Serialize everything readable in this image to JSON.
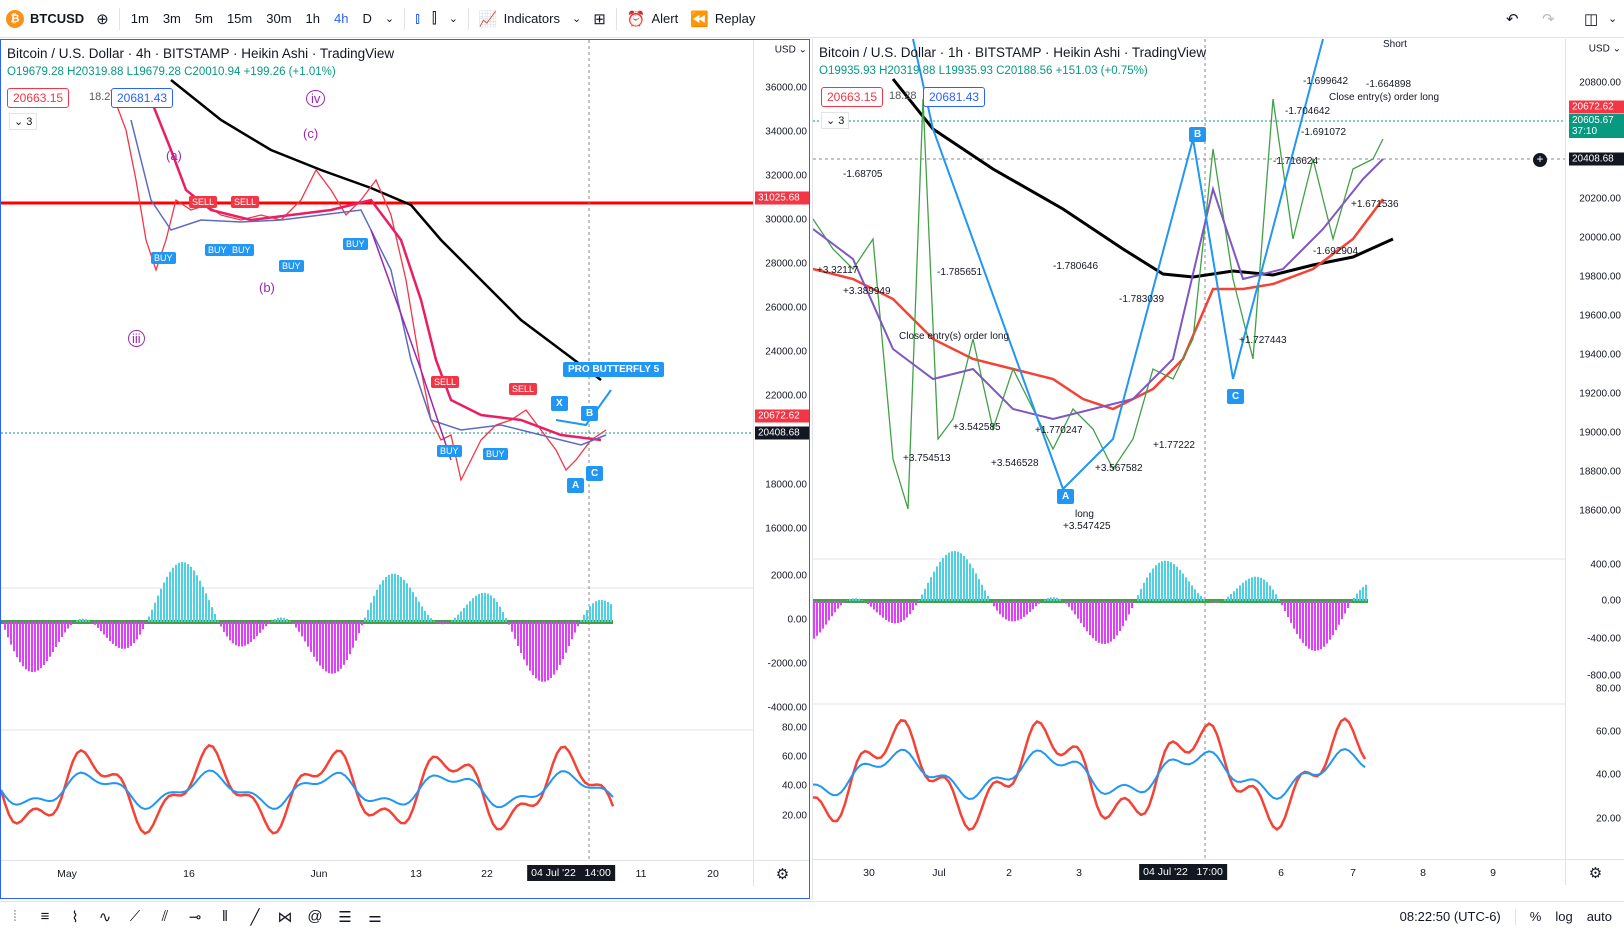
{
  "topbar": {
    "symbol": "BTCUSD",
    "symbol_icon": "bitcoin-icon",
    "timeframes": [
      "1m",
      "3m",
      "5m",
      "15m",
      "30m",
      "1h",
      "4h",
      "D"
    ],
    "active_timeframe": "4h",
    "indicators_label": "Indicators",
    "alert_label": "Alert",
    "replay_label": "Replay"
  },
  "left_chart": {
    "title": "Bitcoin / U.S. Dollar · 4h · BITSTAMP · Heikin Ashi · TradingView",
    "ohlc": "O19679.28 H20319.88 L19679.28 C20010.94 +199.26 (+1.01%)",
    "bid": "20663.15",
    "spread": "18.28",
    "ask": "20681.43",
    "indicator_count": "3",
    "currency": "USD",
    "price_ticks": [
      "36000.00",
      "34000.00",
      "32000.00",
      "30000.00",
      "28000.00",
      "26000.00",
      "24000.00",
      "22000.00",
      "18000.00",
      "16000.00"
    ],
    "osc_ticks": [
      "2000.00",
      "0.00",
      "-2000.00",
      "-4000.00"
    ],
    "rsi_ticks": [
      "80.00",
      "60.00",
      "40.00",
      "20.00"
    ],
    "tag_resistance": "31025.68",
    "tag_last": "20672.62",
    "tag_cross": "20408.68",
    "time_labels": [
      "May",
      "16",
      "Jun",
      "13",
      "22",
      "11",
      "20"
    ],
    "time_current": "04 Jul '22",
    "time_current_hour": "14:00",
    "pattern_label": "PRO BUTTERFLY 5",
    "waves": [
      "iv",
      "(c)",
      "(a)",
      "(b)",
      "iii"
    ],
    "points": [
      "X",
      "B",
      "A",
      "C"
    ],
    "signals_buy": [
      "BUY",
      "BUY",
      "BUY",
      "BUY",
      "BUY",
      "BUY",
      "BUY"
    ],
    "signals_sell": [
      "SELL",
      "SELL",
      "SELL",
      "SELL"
    ]
  },
  "right_chart": {
    "title": "Bitcoin / U.S. Dollar · 1h · BITSTAMP · Heikin Ashi · TradingView",
    "ohlc": "O19935.93 H20319.88 L19935.93 C20188.56 +151.03 (+0.75%)",
    "bid": "20663.15",
    "spread": "18.28",
    "ask": "20681.43",
    "indicator_count": "3",
    "currency": "USD",
    "price_ticks": [
      "20800.00",
      "20200.00",
      "20000.00",
      "19800.00",
      "19600.00",
      "19400.00",
      "19200.00",
      "19000.00",
      "18800.00",
      "18600.00"
    ],
    "osc_ticks": [
      "400.00",
      "0.00",
      "-400.00",
      "-800.00"
    ],
    "rsi_ticks": [
      "80.00",
      "60.00",
      "40.00",
      "20.00"
    ],
    "tag_last": "20672.62",
    "tag_last2": "20605.67",
    "tag_timer": "37:10",
    "tag_cross": "20408.68",
    "time_labels": [
      "30",
      "Jul",
      "2",
      "3",
      "4",
      "6",
      "7",
      "8",
      "9"
    ],
    "time_current": "04 Jul '22",
    "time_current_hour": "17:00",
    "points": [
      "B",
      "A",
      "C"
    ],
    "annotations": [
      {
        "text": "Short",
        "k": "a1"
      },
      {
        "text": "-1.664898",
        "k": "a2"
      },
      {
        "text": "Close entry(s) order long",
        "k": "a3"
      },
      {
        "text": "-1.699642",
        "k": "a4"
      },
      {
        "text": "-1.704642",
        "k": "a5"
      },
      {
        "text": "-1.691072",
        "k": "a6"
      },
      {
        "text": "-1.716624",
        "k": "a7"
      },
      {
        "text": "+1.671536",
        "k": "a8"
      },
      {
        "text": "-1.692904",
        "k": "a9"
      },
      {
        "text": "long",
        "k": "a10"
      },
      {
        "text": "+3.547425",
        "k": "a11"
      },
      {
        "text": "+1.77222",
        "k": "a12"
      },
      {
        "text": "+3.567582",
        "k": "a13"
      },
      {
        "text": "-1.780646",
        "k": "a14"
      },
      {
        "text": "-1.783039",
        "k": "a15"
      },
      {
        "text": "+3.389949",
        "k": "a16"
      },
      {
        "text": "+3.32117",
        "k": "a17"
      },
      {
        "text": "-1.68705",
        "k": "a18"
      },
      {
        "text": "-1.785651",
        "k": "a19"
      },
      {
        "text": "+3.754513",
        "k": "a20"
      },
      {
        "text": "+3.542585",
        "k": "a21"
      },
      {
        "text": "+3.546528",
        "k": "a22"
      },
      {
        "text": "+1.770247",
        "k": "a23"
      },
      {
        "text": "+1.727443",
        "k": "a24"
      },
      {
        "text": "Close entry(s) order long",
        "k": "a25"
      }
    ]
  },
  "bottombar": {
    "clock": "08:22:50 (UTC-6)",
    "percent": "%",
    "log": "log",
    "auto": "auto"
  },
  "colors": {
    "accent": "#2962ff",
    "up": "#089981",
    "down": "#f23645",
    "resistance": "#ff0000",
    "ma_black": "#000000",
    "ma_red": "#e91e63",
    "purple": "#9c27b0",
    "buy": "#2196f3",
    "osc_pos": "#4dd0e1",
    "osc_neg": "#e040fb"
  }
}
